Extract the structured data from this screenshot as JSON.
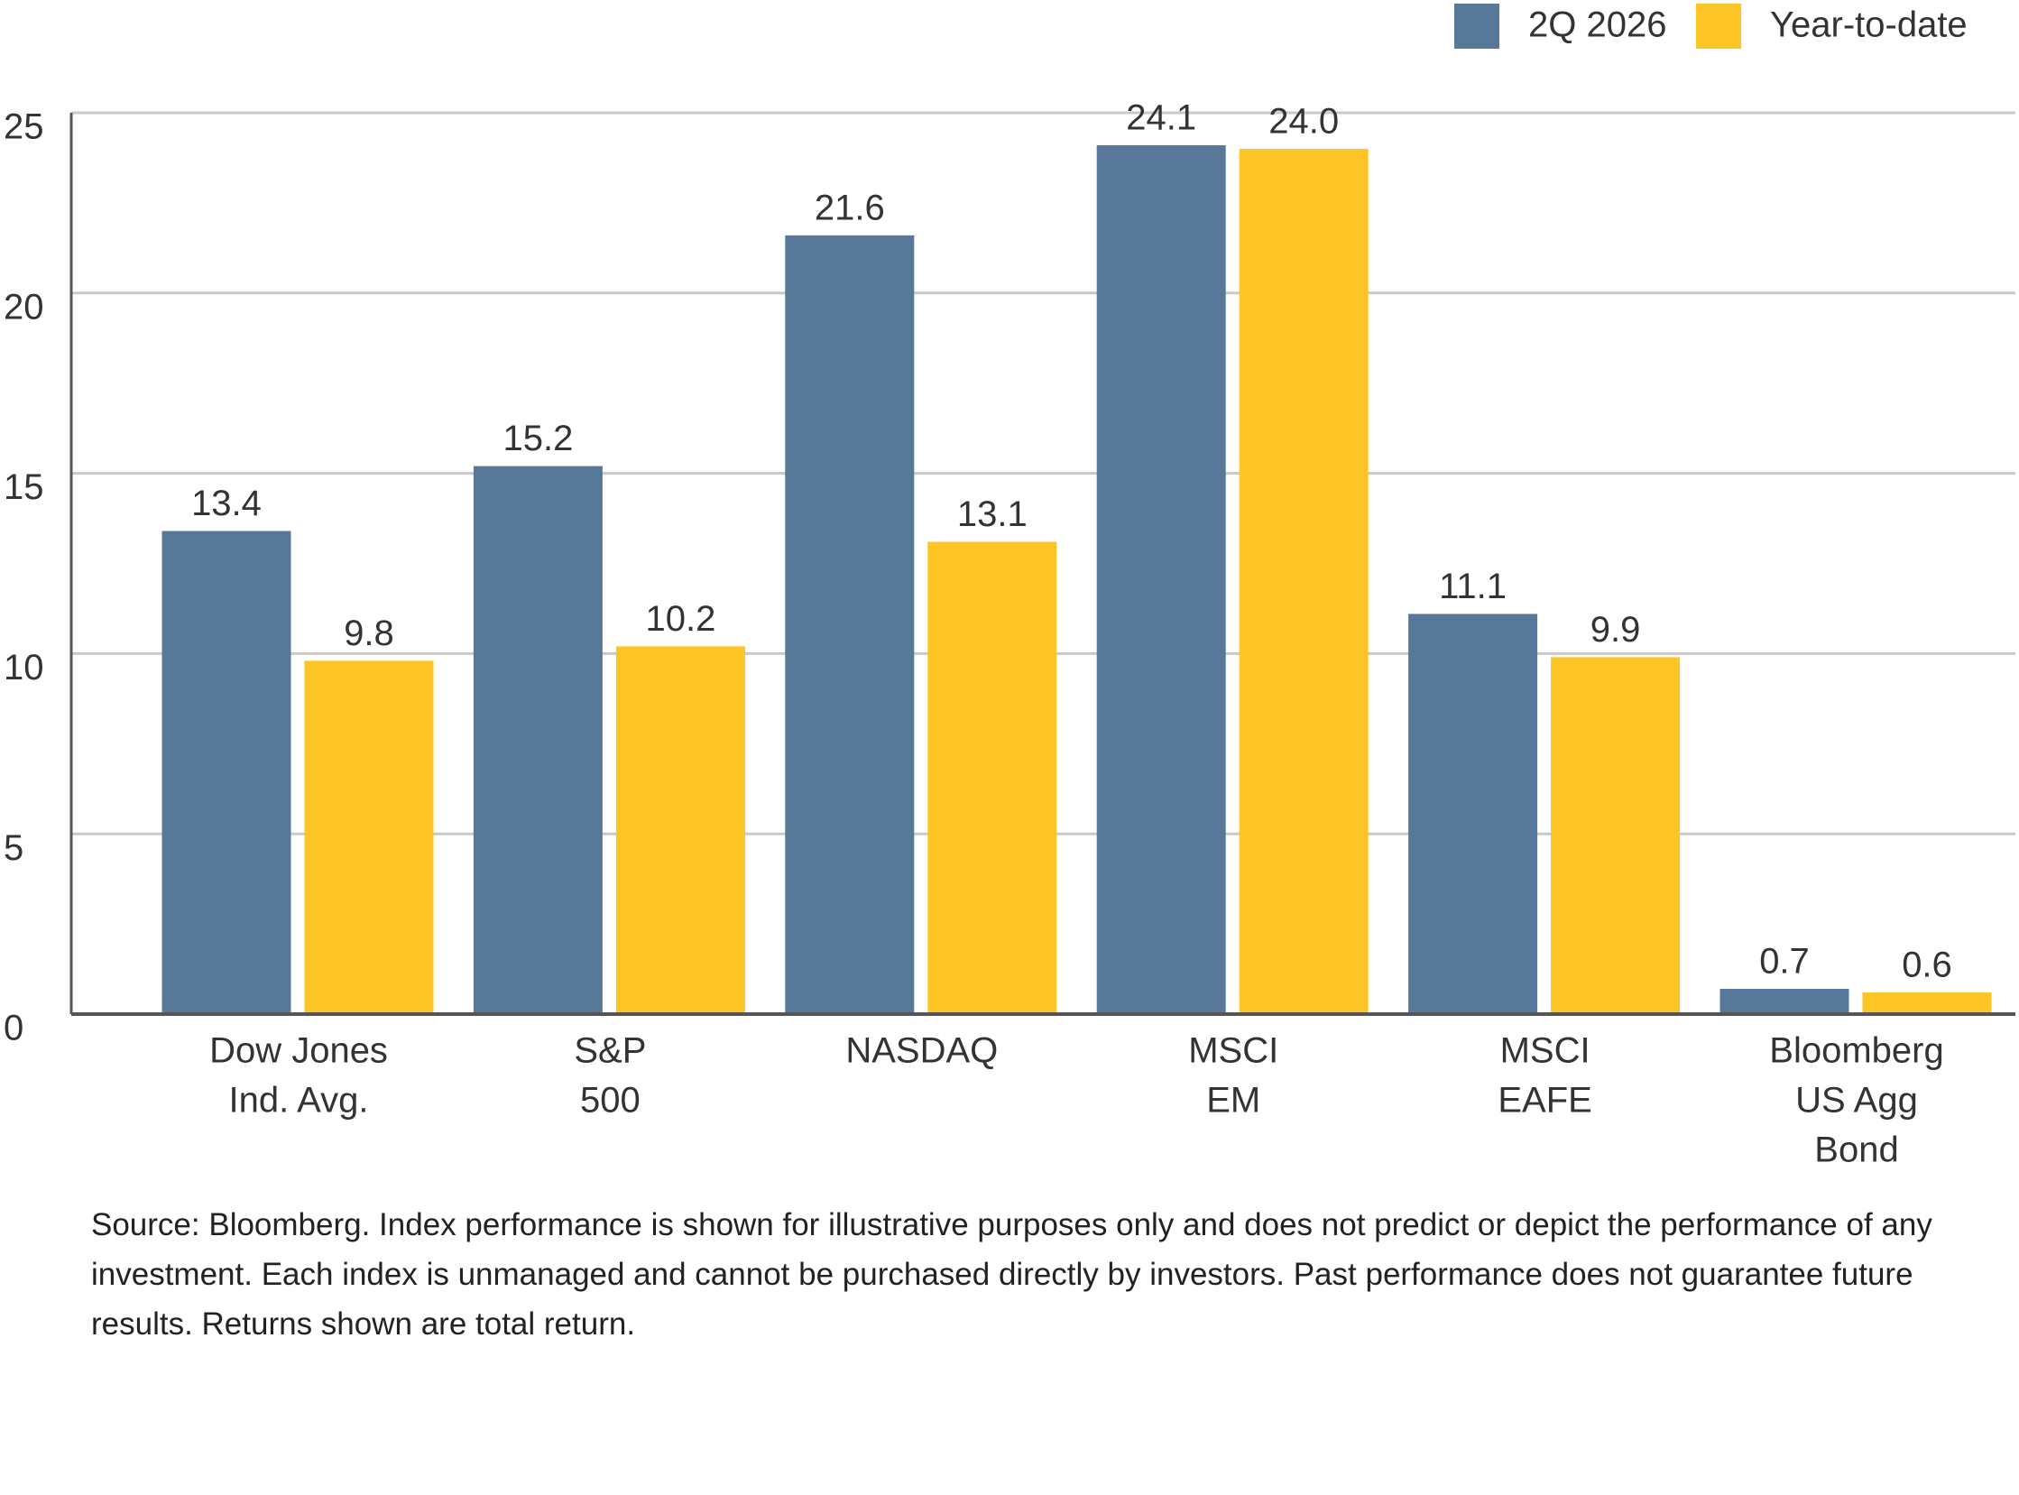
{
  "chart_data": {
    "type": "bar",
    "categories": [
      [
        "Dow Jones",
        "Ind. Avg."
      ],
      [
        "S&P",
        "500"
      ],
      [
        "NASDAQ"
      ],
      [
        "MSCI",
        "EM"
      ],
      [
        "MSCI",
        "EAFE"
      ],
      [
        "Bloomberg",
        "US Agg",
        "Bond"
      ]
    ],
    "series": [
      {
        "name": "2Q 2026",
        "color": "#587899",
        "values": [
          13.4,
          15.2,
          21.6,
          24.1,
          11.1,
          0.7
        ],
        "value_labels": [
          "13.4",
          "15.2",
          "21.6",
          "24.1",
          "11.1",
          "0.7"
        ]
      },
      {
        "name": "Year-to-date",
        "color": "#fdc426",
        "values": [
          9.8,
          10.2,
          13.1,
          24.0,
          9.9,
          0.6
        ],
        "value_labels": [
          "9.8",
          "10.2",
          "13.1",
          "24.0",
          "9.9",
          "0.6"
        ]
      }
    ],
    "ylim": [
      0,
      25
    ],
    "yticks": [
      0,
      5,
      10,
      15,
      20,
      25
    ],
    "grid": true,
    "legend": "top-right",
    "note": "Source: Bloomberg. Index performance is shown for illustrative purposes only and does not predict or depict the performance of any investment. Each index is unmanaged and cannot be purchased directly by investors. Past performance does not guarantee future results. Returns shown are total return."
  }
}
